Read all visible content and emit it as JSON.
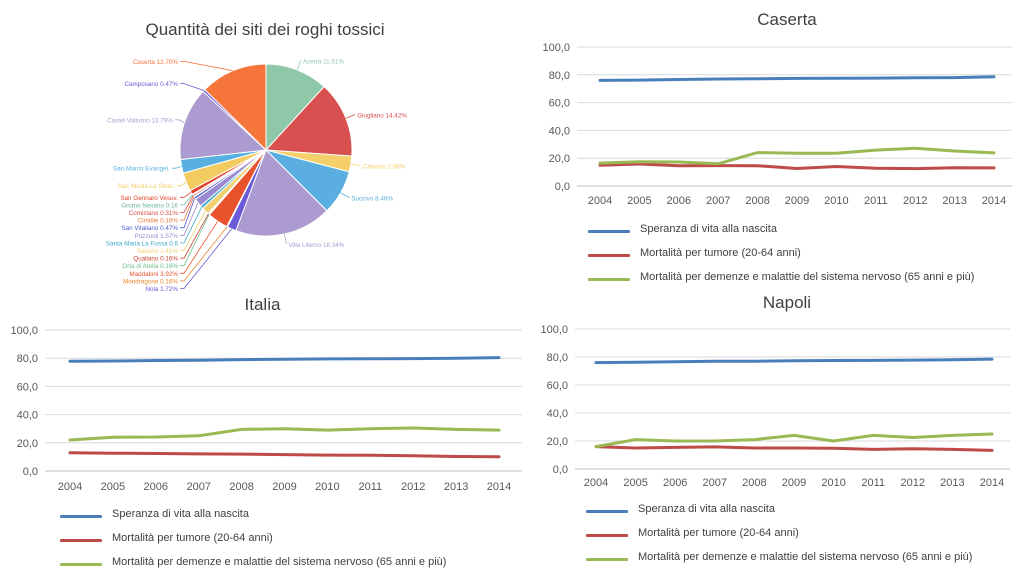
{
  "chart_data": [
    {
      "type": "pie",
      "title": "Quantità dei siti dei roghi tossici",
      "slices": [
        {
          "label": "Acerra 11.91%",
          "value": 11.91,
          "color": "#8fc8a8"
        },
        {
          "label": "Giugliano 14.42%",
          "value": 14.42,
          "color": "#d85050"
        },
        {
          "label": "Caivano 2.98%",
          "value": 2.98,
          "color": "#f4cf6a"
        },
        {
          "label": "Succivo 8.46%",
          "value": 8.46,
          "color": "#5aaee0"
        },
        {
          "label": "Villa Literno 18.34%",
          "value": 18.34,
          "color": "#ab9bd0"
        },
        {
          "label": "Nola 1.72%",
          "value": 1.72,
          "color": "#6a5ad8"
        },
        {
          "label": "Mondragone 0.16%",
          "value": 0.16,
          "color": "#e8852e"
        },
        {
          "label": "Maddaloni 3.92%",
          "value": 3.92,
          "color": "#e8532e"
        },
        {
          "label": "Orta di Atella 0.16%",
          "value": 0.16,
          "color": "#6bbf8a"
        },
        {
          "label": "Qualiano 0.16%",
          "value": 0.16,
          "color": "#c8402e"
        },
        {
          "label": "Savano 1.41%",
          "value": 1.41,
          "color": "#f0d070"
        },
        {
          "label": "Santa Maria La Fossa 0.6",
          "value": 0.6,
          "color": "#3aa8c8"
        },
        {
          "label": "Pozzuoli 1.57%",
          "value": 1.57,
          "color": "#9a8ad0"
        },
        {
          "label": "San Vitaliano 0.47%",
          "value": 0.47,
          "color": "#4a5ad0"
        },
        {
          "label": "Cimitile 0.16%",
          "value": 0.16,
          "color": "#e87a3a"
        },
        {
          "label": "Comiziano 0.31%",
          "value": 0.31,
          "color": "#d84a4a"
        },
        {
          "label": "Grumo Nevano 0.16",
          "value": 0.16,
          "color": "#6ab89a"
        },
        {
          "label": "San Gennaro Vesuv.",
          "value": 0.8,
          "color": "#e0402a"
        },
        {
          "label": "San Nicola La Strac.",
          "value": 3.5,
          "color": "#f2cc60"
        },
        {
          "label": "San Marco Evangel.",
          "value": 2.6,
          "color": "#58b0e0"
        },
        {
          "label": "Castel Volturno 13.79%",
          "value": 13.79,
          "color": "#ab9bd0"
        },
        {
          "label": "Camposano 0.47%",
          "value": 0.47,
          "color": "#6a5ad8"
        },
        {
          "label": "Caserta 12.70%",
          "value": 12.7,
          "color": "#f5753a"
        }
      ]
    },
    {
      "type": "line",
      "title": "Caserta",
      "x": [
        "2004",
        "2005",
        "2006",
        "2007",
        "2008",
        "2009",
        "2010",
        "2011",
        "2012",
        "2013",
        "2014"
      ],
      "yticks": [
        "0,0",
        "20,0",
        "40,0",
        "60,0",
        "80,0",
        "100,0"
      ],
      "ylim": [
        0,
        100
      ],
      "series": [
        {
          "name": "Speranza di vita alla nascita",
          "color": "#4a7ebb",
          "values": [
            76.0,
            76.2,
            76.6,
            77.0,
            77.1,
            77.4,
            77.5,
            77.6,
            77.9,
            78.0,
            78.6
          ]
        },
        {
          "name": "Mortalità per tumore (20-64 anni)",
          "color": "#be4b48",
          "values": [
            15.0,
            15.8,
            14.5,
            14.7,
            14.6,
            12.6,
            14.0,
            12.7,
            12.5,
            13.2,
            13.0
          ]
        },
        {
          "name": "Mortalità per demenze e malattie del sistema nervoso (65 anni e più)",
          "color": "#98b954",
          "values": [
            16.5,
            17.5,
            17.3,
            16.0,
            24.0,
            23.5,
            23.5,
            25.8,
            27.2,
            25.2,
            23.8
          ]
        }
      ]
    },
    {
      "type": "line",
      "title": "Italia",
      "x": [
        "2004",
        "2005",
        "2006",
        "2007",
        "2008",
        "2009",
        "2010",
        "2011",
        "2012",
        "2013",
        "2014"
      ],
      "yticks": [
        "0,0",
        "20,0",
        "40,0",
        "60,0",
        "80,0",
        "100,0"
      ],
      "ylim": [
        0,
        100
      ],
      "series": [
        {
          "name": "Speranza di vita alla nascita",
          "color": "#4a7ebb",
          "values": [
            77.9,
            78.0,
            78.4,
            78.6,
            79.0,
            79.2,
            79.5,
            79.6,
            79.7,
            80.0,
            80.4
          ]
        },
        {
          "name": "Mortalità per tumore (20-64 anni)",
          "color": "#be4b48",
          "values": [
            13.0,
            12.6,
            12.4,
            12.1,
            12.0,
            11.6,
            11.3,
            11.1,
            10.8,
            10.3,
            10.1
          ]
        },
        {
          "name": "Mortalità per demenze e malattie del sistema nervoso (65 anni e più)",
          "color": "#98b954",
          "values": [
            22.0,
            24.0,
            24.1,
            25.0,
            29.5,
            30.0,
            29.0,
            30.0,
            30.5,
            29.5,
            29.0
          ]
        }
      ]
    },
    {
      "type": "line",
      "title": "Napoli",
      "x": [
        "2004",
        "2005",
        "2006",
        "2007",
        "2008",
        "2009",
        "2010",
        "2011",
        "2012",
        "2013",
        "2014"
      ],
      "yticks": [
        "0,0",
        "20,0",
        "40,0",
        "60,0",
        "80,0",
        "100,0"
      ],
      "ylim": [
        0,
        100
      ],
      "series": [
        {
          "name": "Speranza di vita alla nascita",
          "color": "#4a7ebb",
          "values": [
            76.0,
            76.2,
            76.6,
            76.9,
            77.0,
            77.3,
            77.5,
            77.6,
            77.8,
            78.0,
            78.5
          ]
        },
        {
          "name": "Mortalità per tumore (20-64 anni)",
          "color": "#be4b48",
          "values": [
            16.0,
            15.0,
            15.4,
            15.8,
            15.0,
            15.0,
            14.8,
            14.0,
            14.4,
            14.0,
            13.3
          ]
        },
        {
          "name": "Mortalità per demenze e malattie del sistema nervoso (65 anni e più)",
          "color": "#98b954",
          "values": [
            16.0,
            21.0,
            20.0,
            20.0,
            21.0,
            24.0,
            20.0,
            24.0,
            22.5,
            24.0,
            25.0
          ]
        }
      ]
    }
  ]
}
